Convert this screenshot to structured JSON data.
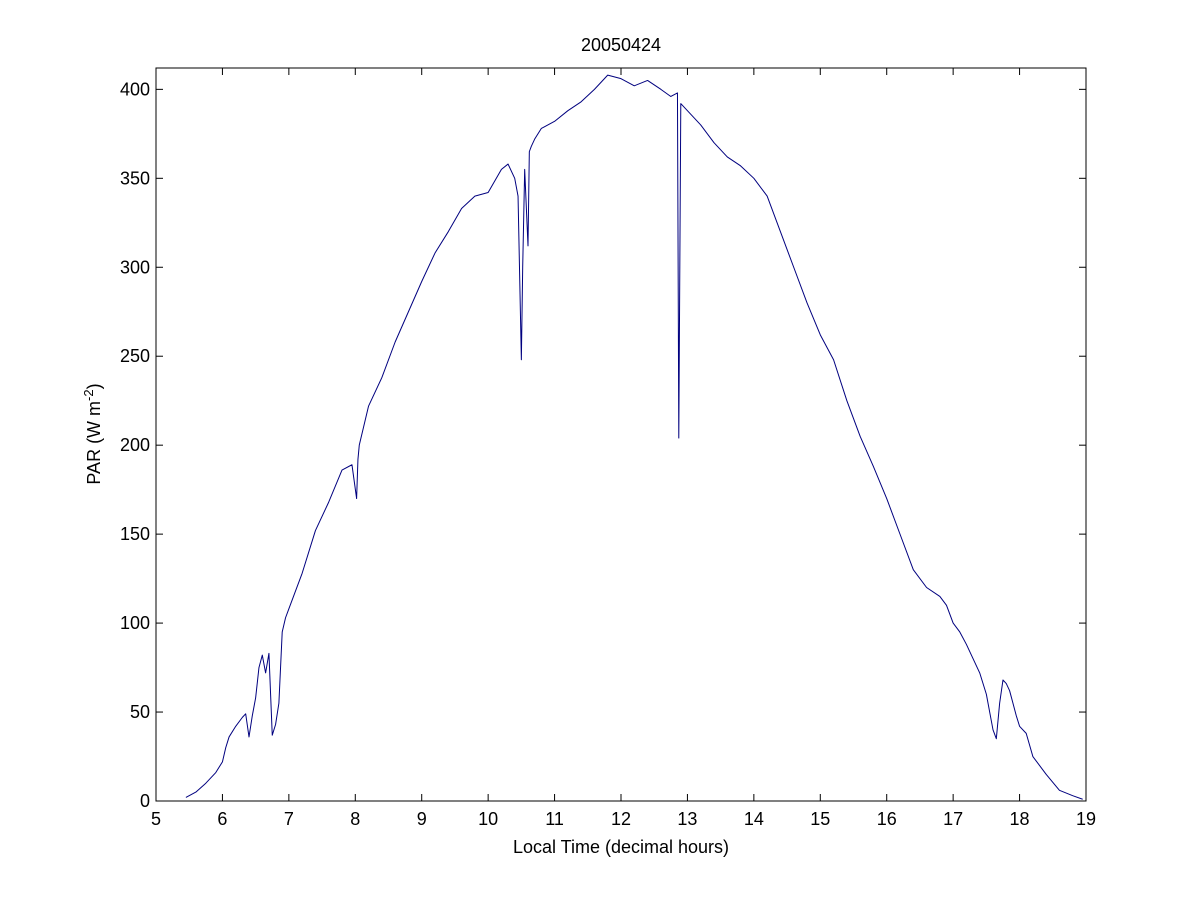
{
  "chart_data": {
    "type": "line",
    "title": "20050424",
    "xlabel": "Local Time (decimal hours)",
    "ylabel": {
      "text": "PAR (W m",
      "superscript": "-2",
      "suffix": ")"
    },
    "xlim": [
      5,
      19
    ],
    "ylim": [
      0,
      412
    ],
    "xticks": [
      5,
      6,
      7,
      8,
      9,
      10,
      11,
      12,
      13,
      14,
      15,
      16,
      17,
      18,
      19
    ],
    "yticks": [
      0,
      50,
      100,
      150,
      200,
      250,
      300,
      350,
      400
    ],
    "grid": false,
    "line_color": "#00007f",
    "series": [
      {
        "x": [
          5.45,
          5.6,
          5.75,
          5.9,
          6.0,
          6.05,
          6.1,
          6.2,
          6.3,
          6.35,
          6.4,
          6.45,
          6.5,
          6.55,
          6.6,
          6.65,
          6.7,
          6.75,
          6.8,
          6.85,
          6.9,
          6.95,
          7.0,
          7.2,
          7.4,
          7.6,
          7.8,
          7.95,
          8.02,
          8.04,
          8.06,
          8.2,
          8.4,
          8.6,
          8.8,
          9.0,
          9.2,
          9.4,
          9.6,
          9.8,
          10.0,
          10.2,
          10.3,
          10.4,
          10.45,
          10.5,
          10.52,
          10.55,
          10.6,
          10.62,
          10.65,
          10.7,
          10.8,
          11.0,
          11.2,
          11.4,
          11.6,
          11.8,
          12.0,
          12.2,
          12.4,
          12.6,
          12.75,
          12.85,
          12.87,
          12.9,
          13.0,
          13.2,
          13.4,
          13.6,
          13.8,
          14.0,
          14.2,
          14.4,
          14.6,
          14.8,
          15.0,
          15.2,
          15.4,
          15.6,
          15.8,
          16.0,
          16.2,
          16.4,
          16.6,
          16.8,
          16.9,
          17.0,
          17.1,
          17.2,
          17.3,
          17.4,
          17.5,
          17.55,
          17.6,
          17.65,
          17.7,
          17.75,
          17.8,
          17.85,
          17.9,
          17.95,
          18.0,
          18.1,
          18.2,
          18.4,
          18.6,
          18.8,
          18.95
        ],
        "y": [
          2,
          5,
          10,
          16,
          22,
          30,
          36,
          42,
          47,
          49,
          36,
          48,
          58,
          75,
          82,
          72,
          83,
          37,
          43,
          55,
          95,
          103,
          108,
          128,
          152,
          168,
          186,
          189,
          170,
          192,
          200,
          222,
          238,
          258,
          275,
          292,
          308,
          320,
          333,
          340,
          342,
          355,
          358,
          350,
          340,
          248,
          300,
          355,
          312,
          365,
          368,
          372,
          378,
          382,
          388,
          393,
          400,
          408,
          406,
          402,
          405,
          400,
          396,
          398,
          204,
          392,
          388,
          380,
          370,
          362,
          357,
          350,
          340,
          320,
          300,
          280,
          262,
          248,
          225,
          205,
          188,
          170,
          150,
          130,
          120,
          115,
          110,
          100,
          95,
          88,
          80,
          72,
          60,
          50,
          40,
          35,
          55,
          68,
          66,
          62,
          55,
          48,
          42,
          38,
          25,
          15,
          6,
          3,
          1
        ]
      }
    ]
  }
}
